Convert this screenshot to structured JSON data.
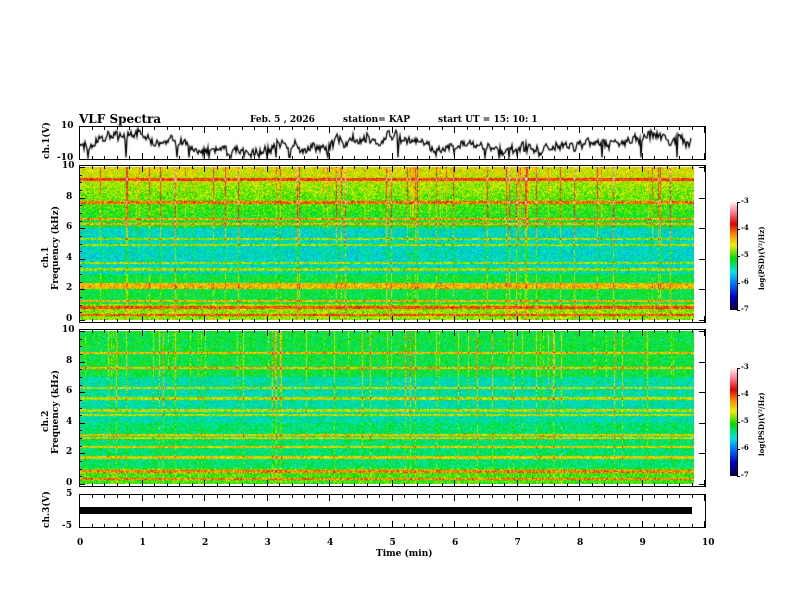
{
  "header": {
    "title": "VLF Spectra",
    "date": "Feb. 5 , 2026",
    "station": "station= KAP",
    "start": "start  UT  =   15: 10: 1"
  },
  "chart_data": [
    {
      "type": "line",
      "name": "ch1-waveform",
      "ylabel": "ch.1(V)",
      "ylim": [
        -10,
        10
      ],
      "yticks": [
        "10",
        "-10"
      ],
      "xlim": [
        0,
        10
      ]
    },
    {
      "type": "heatmap",
      "name": "ch1-spectrogram",
      "ylabel": "ch.1",
      "ylabel2": "Frequency (kHz)",
      "ylim": [
        0,
        10
      ],
      "yticks": [
        "0",
        "2",
        "4",
        "6",
        "8",
        "10"
      ],
      "xlim": [
        0,
        9.8
      ],
      "colorbar": {
        "label": "log(PSD)(V²/Hz)",
        "range": [
          -7,
          -3
        ],
        "ticks": [
          "-3",
          "-4",
          "-5",
          "-6",
          "-7"
        ]
      }
    },
    {
      "type": "heatmap",
      "name": "ch2-spectrogram",
      "ylabel": "ch.2",
      "ylabel2": "Frequency (kHz)",
      "ylim": [
        0,
        10
      ],
      "yticks": [
        "0",
        "2",
        "4",
        "6",
        "8",
        "10"
      ],
      "xlim": [
        0,
        9.8
      ],
      "colorbar": {
        "label": "log(PSD)(V²/Hz)",
        "range": [
          -7,
          -3
        ],
        "ticks": [
          "-3",
          "-4",
          "-5",
          "-6",
          "-7"
        ]
      }
    },
    {
      "type": "line",
      "name": "ch3-waveform",
      "ylabel": "ch.3(V)",
      "ylim": [
        -5,
        5
      ],
      "yticks": [
        "5",
        "-5"
      ],
      "level": 0,
      "xlim": [
        0,
        9.8
      ]
    }
  ],
  "xaxis": {
    "label": "Time  (min)",
    "ticks": [
      "0",
      "1",
      "2",
      "3",
      "4",
      "5",
      "6",
      "7",
      "8",
      "9",
      "10"
    ]
  },
  "colors": {
    "waveform": "#000000"
  }
}
